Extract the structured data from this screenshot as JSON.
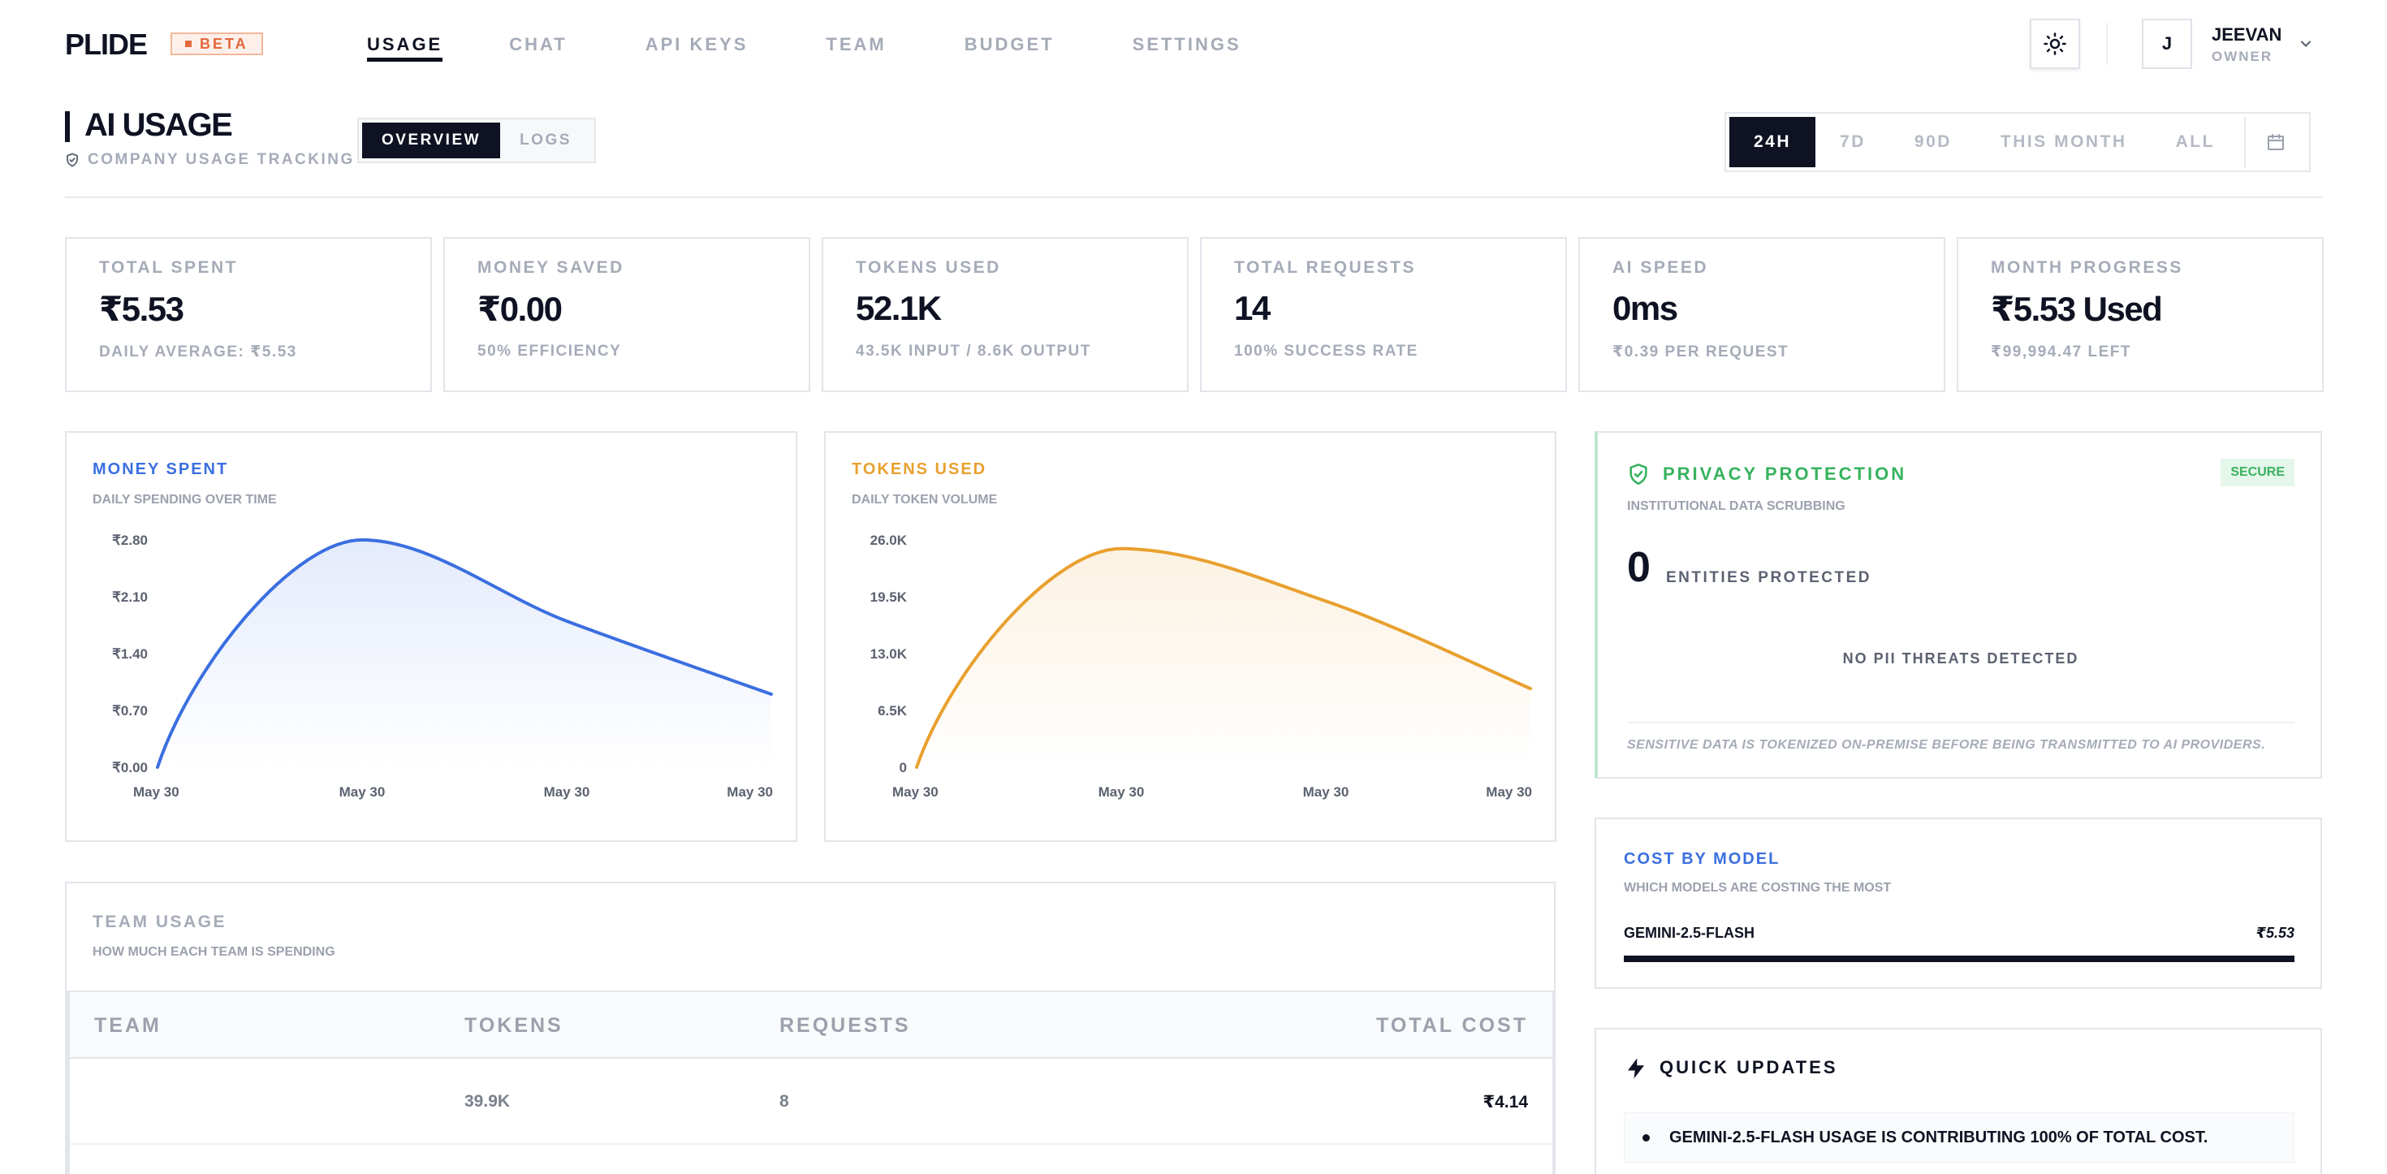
{
  "app": {
    "logo": "PLIDE",
    "badge": "BETA"
  },
  "nav": {
    "tabs": [
      {
        "label": "USAGE",
        "active": true
      },
      {
        "label": "CHAT",
        "active": false
      },
      {
        "label": "API KEYS",
        "active": false
      },
      {
        "label": "TEAM",
        "active": false
      },
      {
        "label": "BUDGET",
        "active": false
      },
      {
        "label": "SETTINGS",
        "active": false
      }
    ]
  },
  "user": {
    "initial": "J",
    "name": "JEEVAN",
    "role": "OWNER"
  },
  "icons": {
    "theme": "sun-icon",
    "user_menu": "chevron-down-icon",
    "calendar": "calendar-icon",
    "privacy": "shield-check-icon",
    "updates": "lightning-icon",
    "subtitle": "shield-icon"
  },
  "header": {
    "title": "AI USAGE",
    "subtitle": "COMPANY USAGE TRACKING",
    "views": [
      "OVERVIEW",
      "LOGS"
    ],
    "active_view": "OVERVIEW",
    "ranges": [
      "24H",
      "7D",
      "90D",
      "THIS MONTH",
      "ALL"
    ],
    "active_range": "24H"
  },
  "stats": [
    {
      "label": "TOTAL SPENT",
      "value": "₹5.53",
      "sub": "DAILY AVERAGE: ₹5.53"
    },
    {
      "label": "MONEY SAVED",
      "value": "₹0.00",
      "sub": "50% EFFICIENCY"
    },
    {
      "label": "TOKENS USED",
      "value": "52.1K",
      "sub": "43.5K INPUT / 8.6K OUTPUT"
    },
    {
      "label": "TOTAL REQUESTS",
      "value": "14",
      "sub": "100% SUCCESS RATE"
    },
    {
      "label": "AI SPEED",
      "value": "0ms",
      "sub": "₹0.39 PER REQUEST"
    },
    {
      "label": "MONTH PROGRESS",
      "value": "₹5.53 Used",
      "sub": "₹99,994.47 LEFT"
    }
  ],
  "colors": {
    "money": "#3b6fe0",
    "tokens": "#e8a02e",
    "privacy": "#37b25e",
    "dark": "#0f1222"
  },
  "chart_data": [
    {
      "type": "area",
      "title": "MONEY SPENT",
      "subtitle": "DAILY SPENDING OVER TIME",
      "x_ticks": [
        "May 30",
        "May 30",
        "May 30",
        "May 30"
      ],
      "y_ticks": [
        "₹2.80",
        "₹2.10",
        "₹1.40",
        "₹0.70",
        "₹0.00"
      ],
      "ylim": [
        0,
        2.8
      ],
      "x": [
        0,
        1,
        2,
        3
      ],
      "values": [
        0.0,
        2.8,
        1.8,
        0.9
      ],
      "color": "#3b6fe0"
    },
    {
      "type": "area",
      "title": "TOKENS USED",
      "subtitle": "DAILY TOKEN VOLUME",
      "x_ticks": [
        "May 30",
        "May 30",
        "May 30",
        "May 30"
      ],
      "y_ticks": [
        "26.0K",
        "19.5K",
        "13.0K",
        "6.5K",
        "0"
      ],
      "ylim": [
        0,
        26000
      ],
      "x": [
        0,
        1,
        2,
        3
      ],
      "values": [
        0,
        25000,
        19000,
        9000
      ],
      "color": "#e8a02e"
    }
  ],
  "privacy": {
    "title": "PRIVACY PROTECTION",
    "badge": "SECURE",
    "subtitle": "INSTITUTIONAL DATA SCRUBBING",
    "entities": "0",
    "entities_label": "ENTITIES PROTECTED",
    "status": "NO PII THREATS DETECTED",
    "note": "SENSITIVE DATA IS TOKENIZED ON-PREMISE BEFORE BEING TRANSMITTED TO AI PROVIDERS."
  },
  "cost_by_model": {
    "title": "COST BY MODEL",
    "subtitle": "WHICH MODELS ARE COSTING THE MOST",
    "items": [
      {
        "model": "GEMINI-2.5-FLASH",
        "cost": "₹5.53",
        "share": 1.0
      }
    ]
  },
  "updates": {
    "title": "QUICK UPDATES",
    "items": [
      "GEMINI-2.5-FLASH USAGE IS CONTRIBUTING 100% OF TOTAL COST."
    ]
  },
  "team": {
    "title": "TEAM USAGE",
    "subtitle": "HOW MUCH EACH TEAM IS SPENDING",
    "columns": [
      "TEAM",
      "TOKENS",
      "REQUESTS",
      "TOTAL COST"
    ],
    "rows": [
      {
        "team": "",
        "tokens": "39.9K",
        "requests": "8",
        "cost": "₹4.14"
      },
      {
        "team": "",
        "tokens": "",
        "requests": "",
        "cost": ""
      }
    ]
  }
}
